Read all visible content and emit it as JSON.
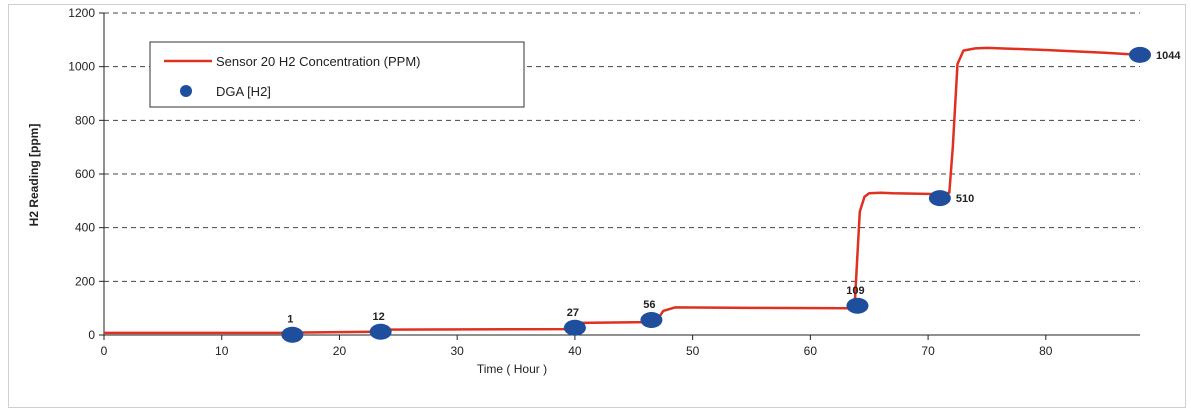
{
  "chart_data": {
    "type": "line",
    "title": "",
    "xlabel": "Time ( Hour )",
    "ylabel": "H2 Reading [ppm]",
    "xlim": [
      0,
      88
    ],
    "ylim": [
      0,
      1200
    ],
    "xticks": [
      0,
      10,
      20,
      30,
      40,
      50,
      60,
      70,
      80
    ],
    "yticks": [
      0,
      200,
      400,
      600,
      800,
      1000,
      1200
    ],
    "grid": "horizontal-dashed",
    "legend_position": "top-left",
    "colors": {
      "line": "#e03020",
      "points": "#1f4e9c",
      "grid": "#444444"
    },
    "series": [
      {
        "name": "Sensor 20 H2 Concentration (PPM)",
        "type": "line",
        "x": [
          0,
          15,
          16,
          23,
          24,
          39,
          40,
          40.5,
          46,
          47,
          47.5,
          48.5,
          55,
          63.5,
          63.8,
          64.2,
          64.6,
          65,
          66,
          67,
          71,
          71.8,
          72.1,
          72.5,
          73,
          74,
          75,
          80,
          85,
          88
        ],
        "y": [
          8,
          8,
          9,
          12,
          20,
          22,
          27,
          45,
          48,
          56,
          90,
          103,
          101,
          100,
          140,
          460,
          515,
          528,
          530,
          528,
          525,
          530,
          700,
          1010,
          1060,
          1068,
          1070,
          1062,
          1052,
          1044
        ]
      },
      {
        "name": "DGA [H2]",
        "type": "scatter",
        "x": [
          16,
          23.5,
          40,
          46.5,
          64,
          71,
          88
        ],
        "y": [
          1,
          12,
          27,
          56,
          109,
          510,
          1044
        ],
        "labels": [
          "1",
          "12",
          "27",
          "56",
          "109",
          "510",
          "1044"
        ]
      }
    ]
  }
}
